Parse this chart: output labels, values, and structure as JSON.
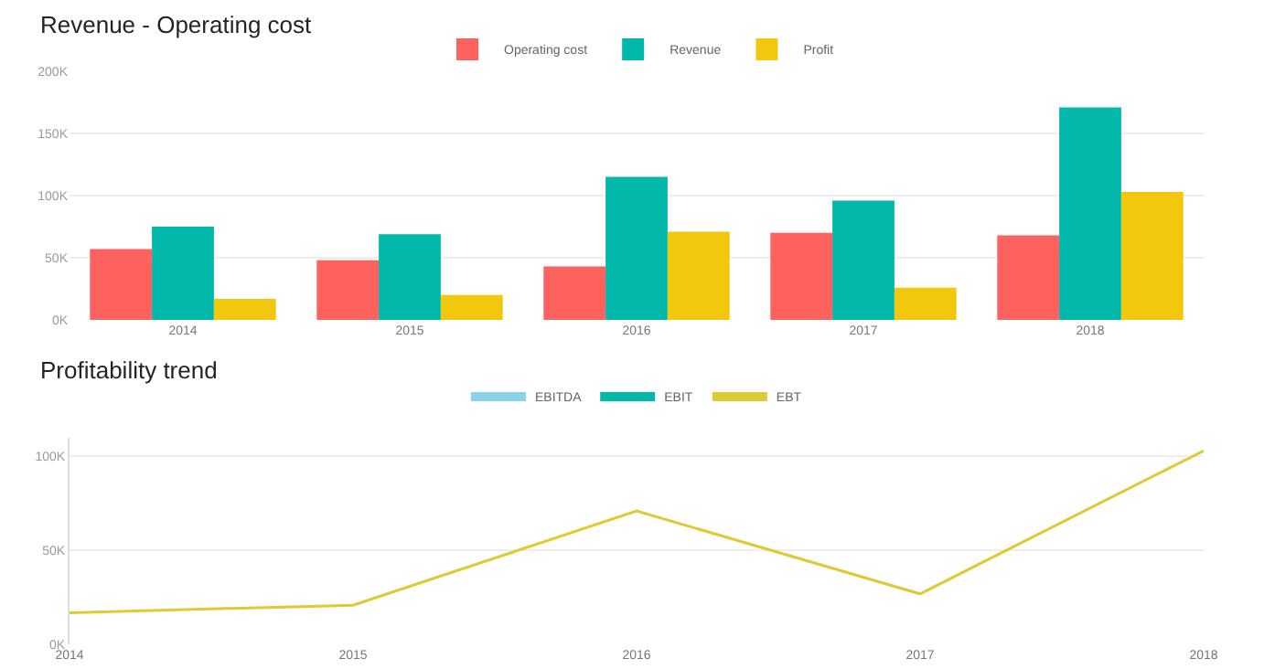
{
  "chart_data": [
    {
      "type": "bar",
      "title": "Revenue - Operating cost",
      "categories": [
        "2014",
        "2015",
        "2016",
        "2017",
        "2018"
      ],
      "series": [
        {
          "name": "Operating cost",
          "color": "#fd625e",
          "values": [
            57000,
            48000,
            43000,
            70000,
            68000
          ]
        },
        {
          "name": "Revenue",
          "color": "#01b8aa",
          "values": [
            75000,
            69000,
            115000,
            96000,
            171000
          ]
        },
        {
          "name": "Profit",
          "color": "#f2c80f",
          "values": [
            17000,
            20000,
            71000,
            26000,
            103000
          ]
        }
      ],
      "ylim": [
        0,
        200000
      ],
      "yticks": [
        {
          "value": 0,
          "label": "0K"
        },
        {
          "value": 50000,
          "label": "50K"
        },
        {
          "value": 100000,
          "label": "100K"
        },
        {
          "value": 150000,
          "label": "150K"
        },
        {
          "value": 200000,
          "label": "200K"
        }
      ],
      "grid": "y",
      "legend": "top"
    },
    {
      "type": "line",
      "title": "Profitability trend",
      "categories": [
        "2014",
        "2015",
        "2016",
        "2017",
        "2018"
      ],
      "series": [
        {
          "name": "EBITDA",
          "color": "#8ad4eb",
          "values": [
            null,
            null,
            null,
            null,
            null
          ]
        },
        {
          "name": "EBIT",
          "color": "#01b8aa",
          "values": [
            null,
            null,
            null,
            null,
            null
          ]
        },
        {
          "name": "EBT",
          "color": "#dfca34",
          "values": [
            17000,
            21000,
            71000,
            27000,
            103000
          ]
        }
      ],
      "ylim": [
        0,
        110000
      ],
      "yticks": [
        {
          "value": 0,
          "label": "0K"
        },
        {
          "value": 50000,
          "label": "50K"
        },
        {
          "value": 100000,
          "label": "100K"
        }
      ],
      "grid": "y",
      "legend": "top",
      "marker": "none",
      "line_style": "solid"
    }
  ]
}
